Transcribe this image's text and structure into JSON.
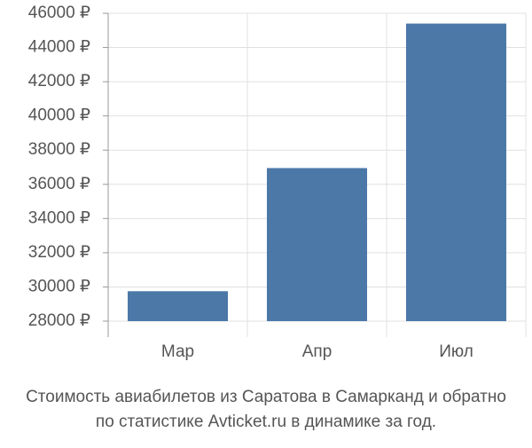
{
  "chart_data": {
    "type": "bar",
    "title": [
      "Стоимость авиабилетов из Саратова в Самарканд и обратно",
      "по статистике Avticket.ru в динамике за год."
    ],
    "categories": [
      "Мар",
      "Апр",
      "Июл"
    ],
    "values": [
      29750,
      36950,
      45400
    ],
    "color": "#4c78a8",
    "ylim": [
      28000,
      46000
    ],
    "yticks": [
      {
        "value": 28000,
        "label": "28000 ₽"
      },
      {
        "value": 30000,
        "label": "30000 ₽"
      },
      {
        "value": 32000,
        "label": "32000 ₽"
      },
      {
        "value": 34000,
        "label": "34000 ₽"
      },
      {
        "value": 36000,
        "label": "36000 ₽"
      },
      {
        "value": 38000,
        "label": "38000 ₽"
      },
      {
        "value": 40000,
        "label": "40000 ₽"
      },
      {
        "value": 42000,
        "label": "42000 ₽"
      },
      {
        "value": 44000,
        "label": "44000 ₽"
      },
      {
        "value": 46000,
        "label": "46000 ₽"
      }
    ],
    "grid": true
  }
}
